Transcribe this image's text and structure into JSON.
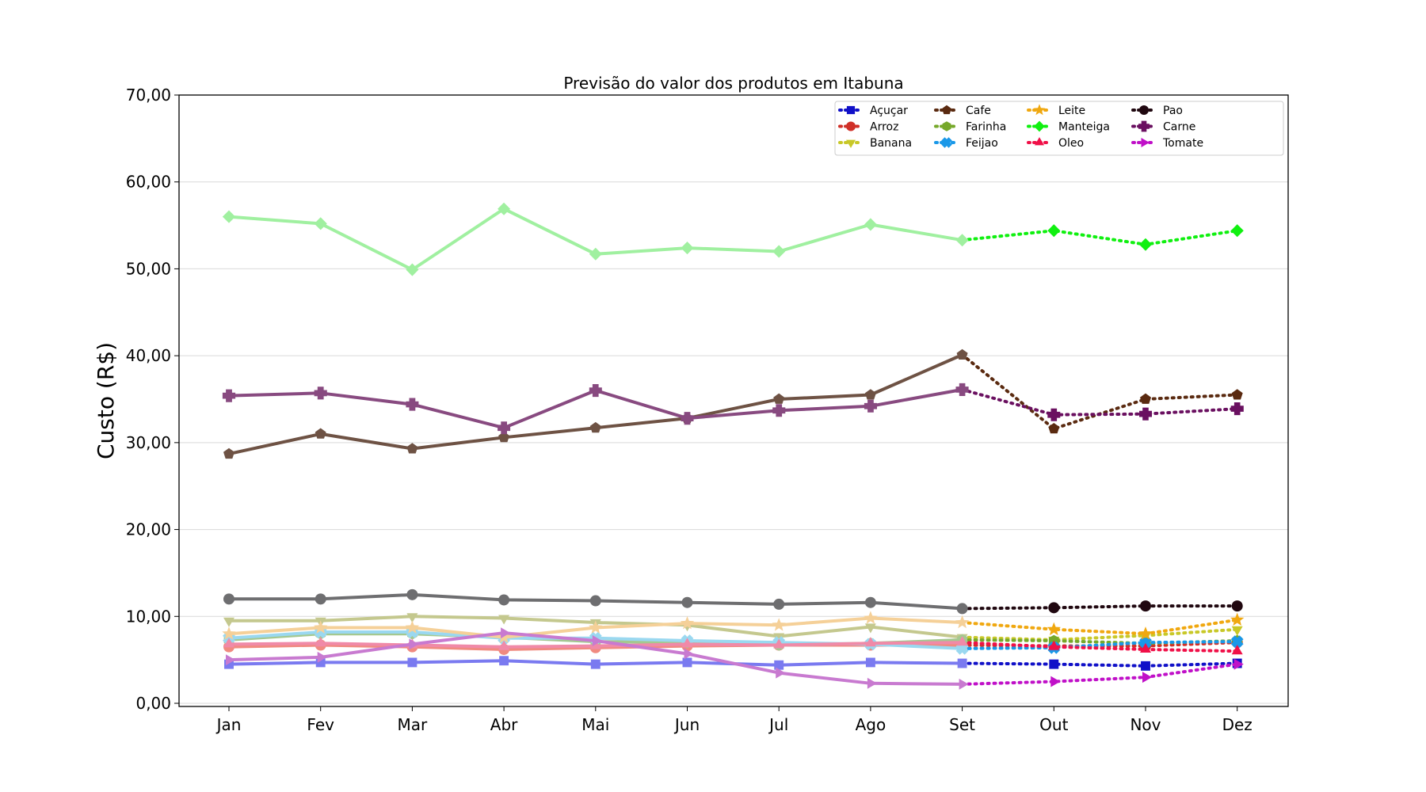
{
  "chart_data": {
    "type": "line",
    "title": "Previsão do valor dos produtos em Itabuna",
    "xlabel": "",
    "ylabel": "Custo (R$)",
    "categories": [
      "Jan",
      "Fev",
      "Mar",
      "Abr",
      "Mai",
      "Jun",
      "Jul",
      "Ago",
      "Set",
      "Out",
      "Nov",
      "Dez"
    ],
    "ylim": [
      0,
      70
    ],
    "yticks": [
      "0,00",
      "10,00",
      "20,00",
      "30,00",
      "40,00",
      "50,00",
      "60,00",
      "70,00"
    ],
    "grid": "horizontal",
    "legend_position": "top-right",
    "legend_columns": 5,
    "series": [
      {
        "name": "Açuçar",
        "marker": "square",
        "color": "#1010c8",
        "hist_color": "#7a7af0",
        "values": [
          4.5,
          4.7,
          4.7,
          4.9,
          4.5,
          4.7,
          4.4,
          4.7,
          4.6,
          4.5,
          4.3,
          4.6
        ]
      },
      {
        "name": "Arroz",
        "marker": "circle",
        "color": "#d03028",
        "hist_color": "#f08a80",
        "values": [
          6.5,
          6.7,
          6.5,
          6.2,
          6.4,
          6.6,
          6.7,
          6.7,
          6.7,
          6.6,
          6.6,
          7.0
        ]
      },
      {
        "name": "Banana",
        "marker": "triangle-down",
        "color": "#c8c828",
        "hist_color": "#c4c88e",
        "values": [
          9.5,
          9.5,
          10.0,
          9.8,
          9.3,
          9.0,
          7.7,
          8.8,
          7.6,
          7.3,
          7.8,
          8.5
        ]
      },
      {
        "name": "Cafe",
        "marker": "pentagon",
        "color": "#5a2a10",
        "hist_color": "#6e5244",
        "values": [
          28.7,
          31.0,
          29.3,
          30.6,
          31.7,
          32.8,
          35.0,
          35.5,
          40.1,
          31.6,
          35.0,
          35.5
        ]
      },
      {
        "name": "Farinha",
        "marker": "hexagon",
        "color": "#76a82a",
        "hist_color": "#a4c890",
        "values": [
          7.3,
          8.0,
          8.0,
          7.6,
          7.1,
          7.0,
          6.7,
          6.9,
          7.3,
          7.2,
          6.9,
          7.2
        ]
      },
      {
        "name": "Feijao",
        "marker": "x-filled",
        "color": "#1a98e8",
        "hist_color": "#9ad8f0",
        "values": [
          7.5,
          8.2,
          8.2,
          7.5,
          7.5,
          7.2,
          7.0,
          6.8,
          6.3,
          6.4,
          7.0,
          7.1
        ]
      },
      {
        "name": "Leite",
        "marker": "star",
        "color": "#f0a810",
        "hist_color": "#f5d098",
        "values": [
          8.0,
          8.7,
          8.7,
          7.6,
          8.7,
          9.2,
          9.0,
          9.8,
          9.3,
          8.5,
          8.0,
          9.6
        ]
      },
      {
        "name": "Manteiga",
        "marker": "diamond",
        "color": "#10f010",
        "hist_color": "#a0f0a0",
        "values": [
          56.0,
          55.2,
          49.9,
          56.9,
          51.7,
          52.4,
          52.0,
          55.1,
          53.3,
          54.4,
          52.8,
          54.4
        ]
      },
      {
        "name": "Oleo",
        "marker": "triangle-up",
        "color": "#f01048",
        "hist_color": "#f08aa8",
        "values": [
          6.8,
          6.9,
          6.7,
          6.5,
          6.6,
          6.8,
          6.7,
          6.9,
          7.0,
          6.5,
          6.2,
          6.0
        ]
      },
      {
        "name": "Pao",
        "marker": "circle",
        "color": "#200810",
        "hist_color": "#6e6e70",
        "values": [
          12.0,
          12.0,
          12.5,
          11.9,
          11.8,
          11.6,
          11.4,
          11.6,
          10.9,
          11.0,
          11.2,
          11.2
        ]
      },
      {
        "name": "Carne",
        "marker": "plus",
        "color": "#6a1060",
        "hist_color": "#884a80",
        "values": [
          35.4,
          35.7,
          34.4,
          31.7,
          36.0,
          32.8,
          33.7,
          34.2,
          36.1,
          33.2,
          33.3,
          33.9
        ]
      },
      {
        "name": "Tomate",
        "marker": "triangle-right",
        "color": "#c010c8",
        "hist_color": "#c87ad0",
        "values": [
          5.0,
          5.3,
          6.8,
          8.1,
          7.2,
          5.7,
          3.5,
          2.3,
          2.2,
          2.5,
          3.0,
          4.5
        ]
      }
    ]
  }
}
